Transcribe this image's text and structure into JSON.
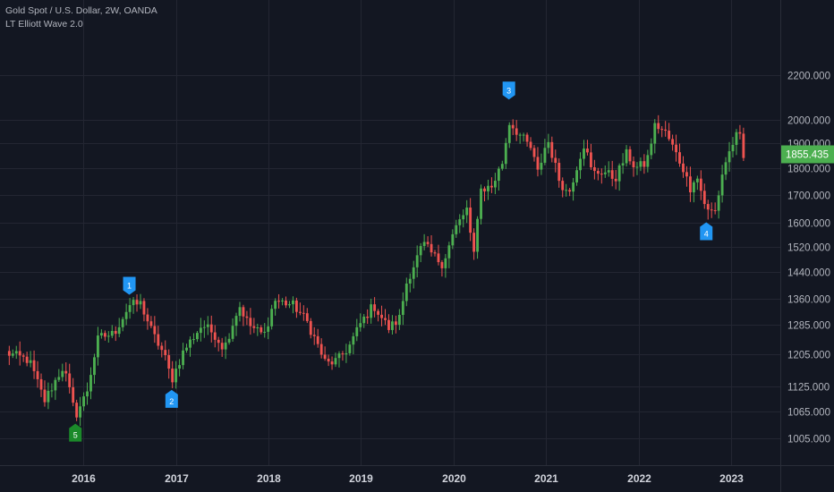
{
  "chart_data": {
    "type": "candlestick",
    "title": "Gold Spot / U.S. Dollar, 2W, OANDA",
    "indicator": "LT Elliott Wave 2.0",
    "y_scale": "log",
    "ylim": [
      980,
      2250
    ],
    "y_ticks": [
      "2200.000",
      "2000.000",
      "1900.000",
      "1800.000",
      "1700.000",
      "1600.000",
      "1520.000",
      "1440.000",
      "1360.000",
      "1285.000",
      "1205.000",
      "1125.000",
      "1065.000",
      "1005.000"
    ],
    "x_ticks": [
      "2016",
      "2017",
      "2018",
      "2019",
      "2020",
      "2021",
      "2022",
      "2023"
    ],
    "last_price": "1855.435",
    "grid": true,
    "colors": {
      "up": "#4caf50",
      "down": "#ef5350",
      "wave_blue": "#2196f3",
      "wave_green": "#1b8a2a",
      "last_badge": "#4caf50",
      "background": "#131722",
      "grid": "#232632"
    },
    "wave_labels": [
      {
        "label": "1",
        "date": "2016-07-01",
        "price": 1360,
        "position": "above"
      },
      {
        "label": "2",
        "date": "2016-12-15",
        "price": 1125,
        "position": "below"
      },
      {
        "label": "3",
        "date": "2020-08-07",
        "price": 2072,
        "position": "above"
      },
      {
        "label": "4",
        "date": "2022-09-25",
        "price": 1615,
        "position": "below"
      },
      {
        "label": "5",
        "date": "2015-12-01",
        "price": 1046,
        "position": "below"
      }
    ],
    "anchors": [
      [
        "2015-03-01",
        1210
      ],
      [
        "2015-06-01",
        1190
      ],
      [
        "2015-08-01",
        1090
      ],
      [
        "2015-10-15",
        1175
      ],
      [
        "2015-12-01",
        1055
      ],
      [
        "2016-01-15",
        1110
      ],
      [
        "2016-03-01",
        1250
      ],
      [
        "2016-05-01",
        1260
      ],
      [
        "2016-07-01",
        1340
      ],
      [
        "2016-08-15",
        1345
      ],
      [
        "2016-10-01",
        1260
      ],
      [
        "2016-11-15",
        1205
      ],
      [
        "2016-12-15",
        1140
      ],
      [
        "2017-02-01",
        1215
      ],
      [
        "2017-04-15",
        1285
      ],
      [
        "2017-06-01",
        1260
      ],
      [
        "2017-07-10",
        1220
      ],
      [
        "2017-09-08",
        1340
      ],
      [
        "2017-10-15",
        1285
      ],
      [
        "2017-12-15",
        1255
      ],
      [
        "2018-01-25",
        1355
      ],
      [
        "2018-04-10",
        1340
      ],
      [
        "2018-06-01",
        1295
      ],
      [
        "2018-08-16",
        1180
      ],
      [
        "2018-10-01",
        1190
      ],
      [
        "2018-11-15",
        1225
      ],
      [
        "2019-01-01",
        1290
      ],
      [
        "2019-02-20",
        1340
      ],
      [
        "2019-04-20",
        1275
      ],
      [
        "2019-06-01",
        1300
      ],
      [
        "2019-07-01",
        1410
      ],
      [
        "2019-09-04",
        1530
      ],
      [
        "2019-10-15",
        1490
      ],
      [
        "2019-11-20",
        1465
      ],
      [
        "2020-01-08",
        1580
      ],
      [
        "2020-02-24",
        1650
      ],
      [
        "2020-03-19",
        1470
      ],
      [
        "2020-04-15",
        1720
      ],
      [
        "2020-06-01",
        1730
      ],
      [
        "2020-07-15",
        1830
      ],
      [
        "2020-08-07",
        1990
      ],
      [
        "2020-09-15",
        1940
      ],
      [
        "2020-11-01",
        1880
      ],
      [
        "2020-11-30",
        1780
      ],
      [
        "2021-01-06",
        1920
      ],
      [
        "2021-02-20",
        1760
      ],
      [
        "2021-03-30",
        1700
      ],
      [
        "2021-05-15",
        1850
      ],
      [
        "2021-06-01",
        1900
      ],
      [
        "2021-07-01",
        1780
      ],
      [
        "2021-08-15",
        1790
      ],
      [
        "2021-09-30",
        1760
      ],
      [
        "2021-11-16",
        1860
      ],
      [
        "2021-12-20",
        1800
      ],
      [
        "2022-02-01",
        1820
      ],
      [
        "2022-03-08",
        1980
      ],
      [
        "2022-04-20",
        1940
      ],
      [
        "2022-06-01",
        1850
      ],
      [
        "2022-07-01",
        1790
      ],
      [
        "2022-07-21",
        1720
      ],
      [
        "2022-08-15",
        1780
      ],
      [
        "2022-09-28",
        1640
      ],
      [
        "2022-11-01",
        1640
      ],
      [
        "2022-12-01",
        1800
      ],
      [
        "2023-01-15",
        1920
      ],
      [
        "2023-02-02",
        1940
      ],
      [
        "2023-02-20",
        1830
      ],
      [
        "2023-03-01",
        1840
      ]
    ]
  }
}
